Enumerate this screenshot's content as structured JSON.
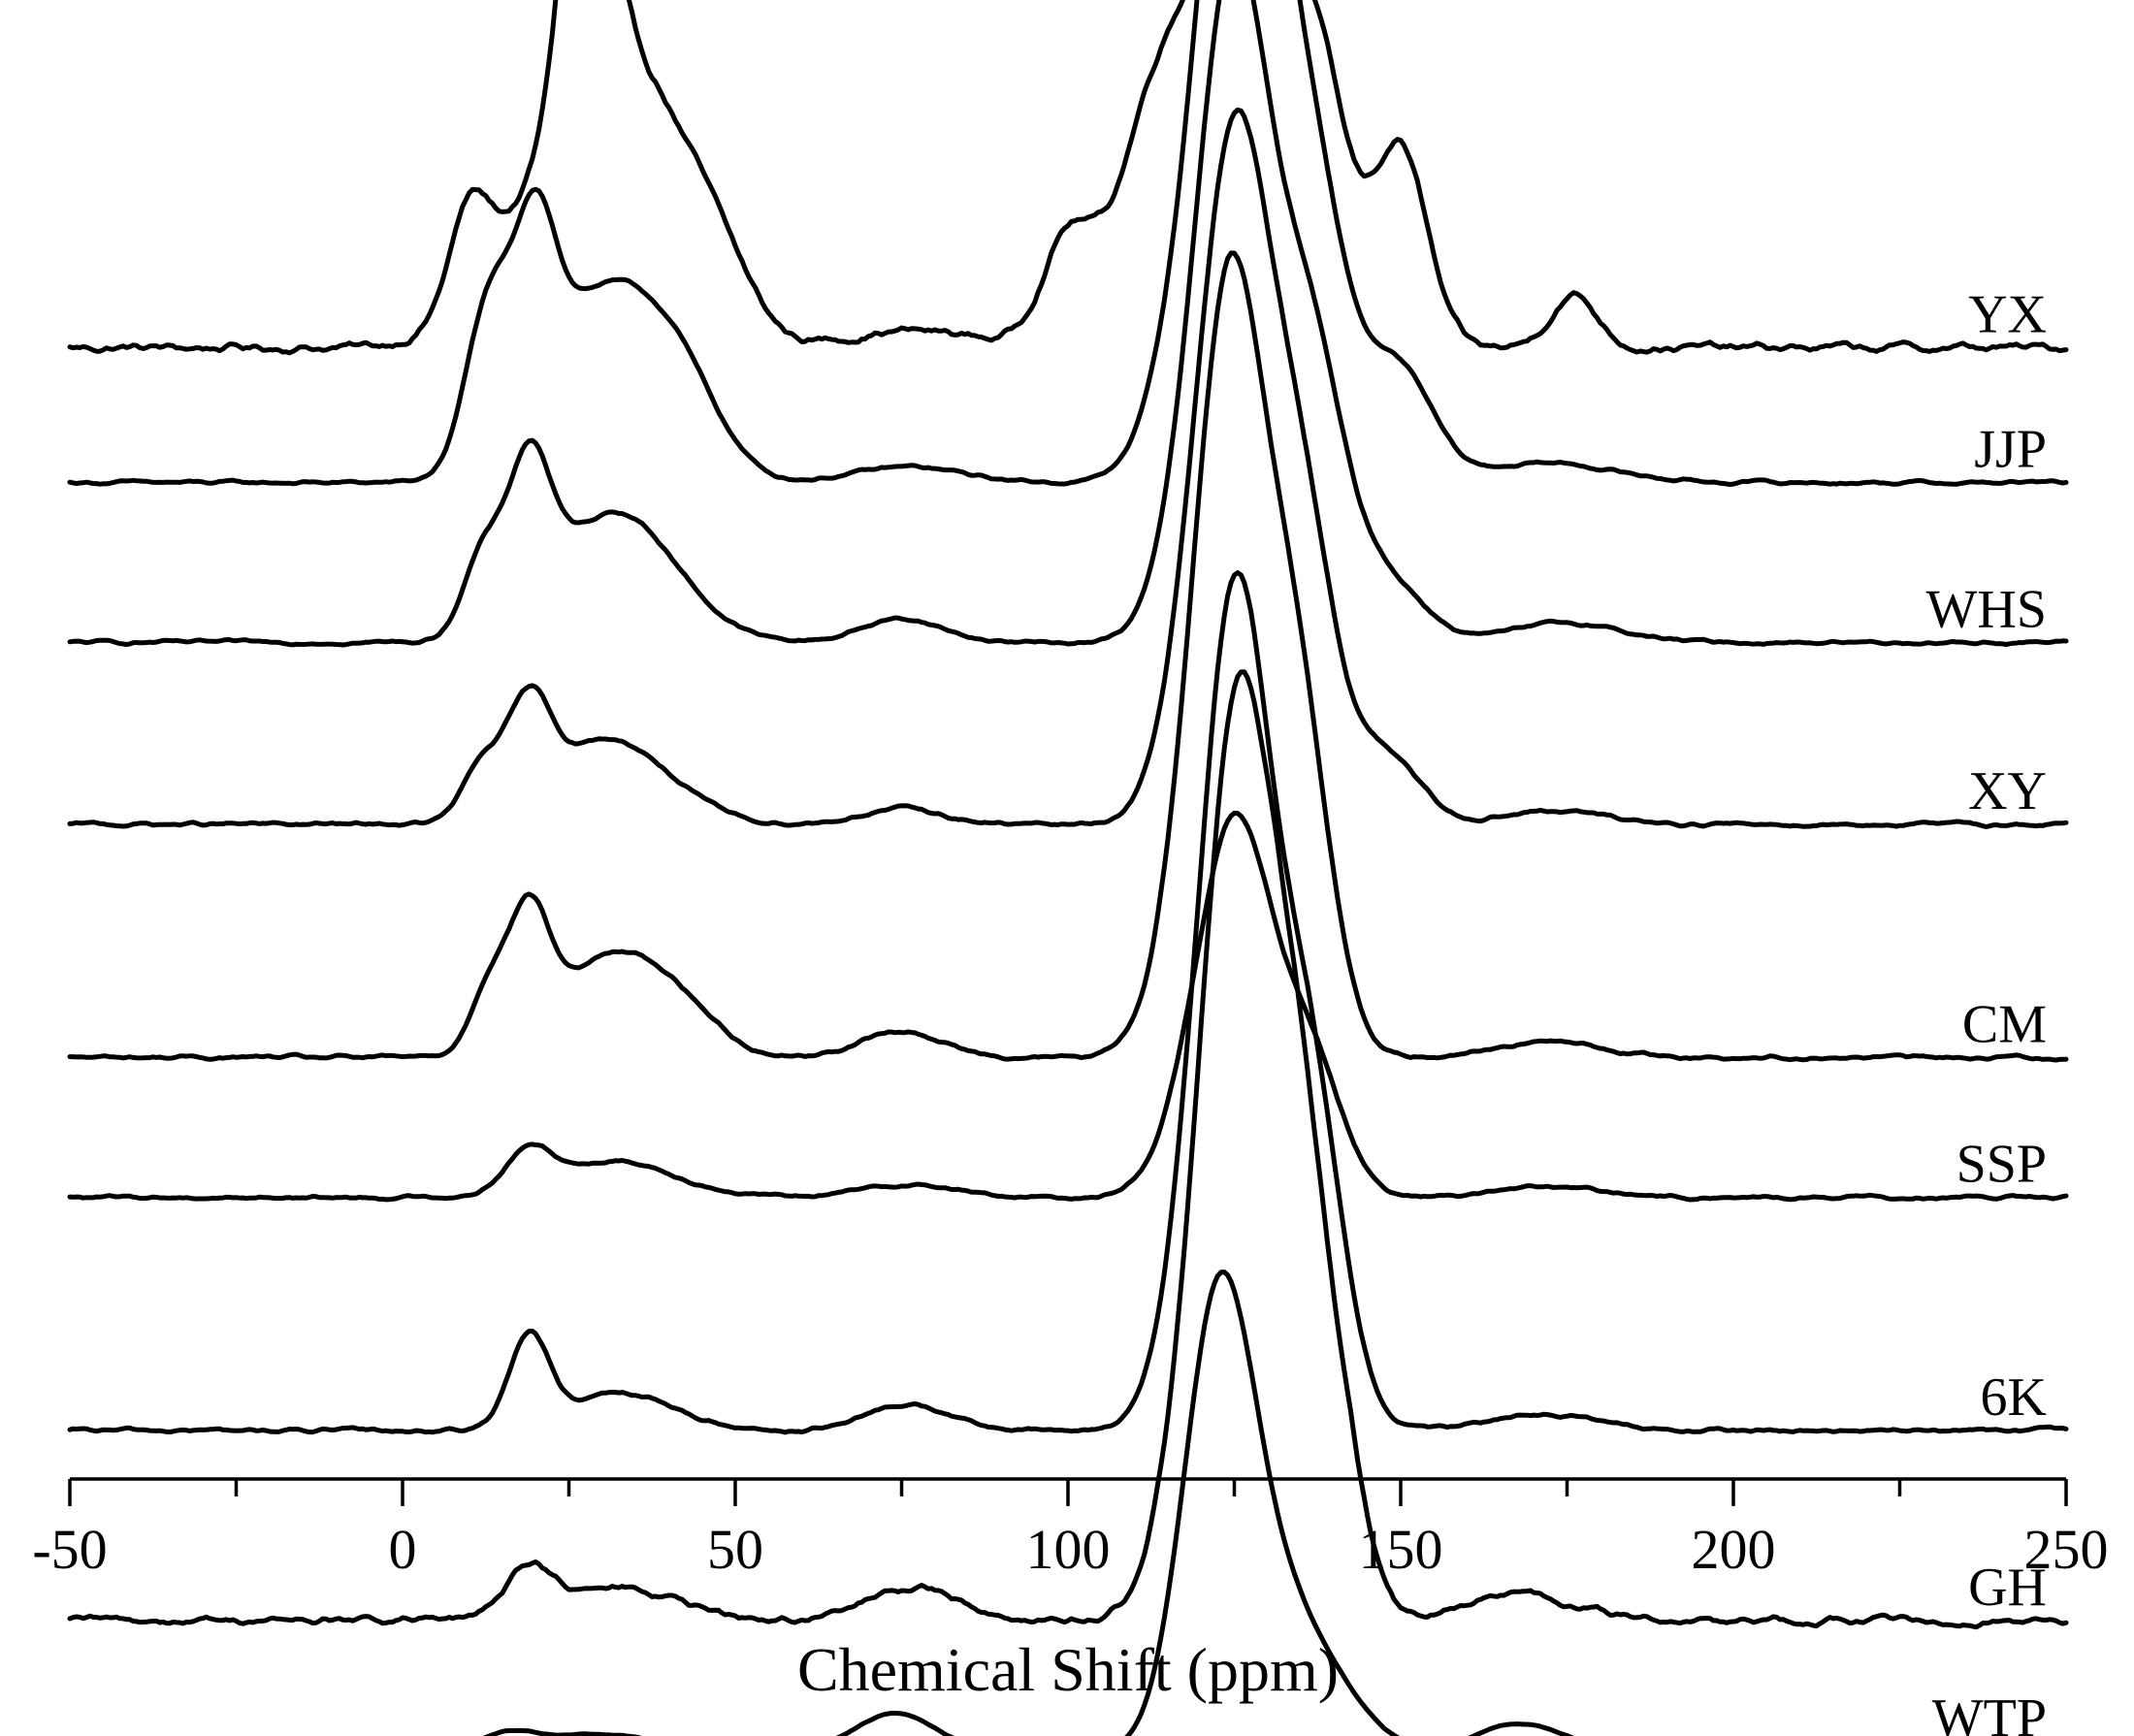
{
  "chart_data": {
    "type": "line",
    "title": "",
    "xlabel": "Chemical Shift (ppm)",
    "ylabel": "",
    "xlim": [
      -50,
      250
    ],
    "x_ticks": [
      -50,
      0,
      50,
      100,
      150,
      200,
      250
    ],
    "x_tick_labels": [
      "-50",
      "0",
      "50",
      "100",
      "150",
      "200",
      "250"
    ],
    "minor_tick_step": 25,
    "stacked_offsets": true,
    "series": [
      {
        "name": "YX",
        "label": "YX",
        "offset": 92.7,
        "noise": 0.9,
        "peaks": [
          [
            27.5,
            27.4,
            3.3
          ],
          [
            22,
            11,
            9
          ],
          [
            36,
            18,
            8
          ],
          [
            10,
            7,
            3
          ],
          [
            48,
            4,
            5
          ],
          [
            77,
            1.3,
            10
          ],
          [
            100,
            8,
            4
          ],
          [
            114,
            20,
            6
          ],
          [
            126,
            34,
            5.5
          ],
          [
            137,
            22,
            5
          ],
          [
            150,
            15,
            4
          ],
          [
            176,
            4,
            3.5
          ]
        ]
      },
      {
        "name": "JJP",
        "label": "JJP",
        "offset": 82.4,
        "noise": 0.35,
        "peaks": [
          [
            13,
            12,
            3.5
          ],
          [
            20,
            13,
            3
          ],
          [
            30,
            14.5,
            9
          ],
          [
            42,
            5,
            6
          ],
          [
            76,
            1.2,
            8
          ],
          [
            121,
            20,
            6
          ],
          [
            126,
            40,
            5
          ],
          [
            135,
            27,
            6
          ],
          [
            150,
            8,
            5
          ],
          [
            172,
            1.5,
            10
          ]
        ]
      },
      {
        "name": "WHS",
        "label": "WHS",
        "offset": 70.2,
        "noise": 0.35,
        "peaks": [
          [
            12,
            6,
            3
          ],
          [
            19,
            11.5,
            3.2
          ],
          [
            32,
            10,
            9
          ],
          [
            75,
            1.8,
            6
          ],
          [
            122,
            22,
            5.5
          ],
          [
            126,
            33,
            5
          ],
          [
            136,
            22,
            5
          ],
          [
            147,
            5,
            6
          ],
          [
            175,
            1.5,
            8
          ]
        ]
      },
      {
        "name": "XY",
        "label": "XY",
        "offset": 56.3,
        "noise": 0.4,
        "peaks": [
          [
            12,
            4,
            3
          ],
          [
            19,
            7.5,
            3.2
          ],
          [
            31,
            6.5,
            9
          ],
          [
            75,
            1.2,
            6
          ],
          [
            122,
            22,
            5.5
          ],
          [
            126,
            33,
            5
          ],
          [
            135,
            23,
            5
          ],
          [
            148,
            5,
            5
          ],
          [
            173,
            1,
            8
          ]
        ]
      },
      {
        "name": "CM",
        "label": "CM",
        "offset": 38.5,
        "noise": 0.4,
        "peaks": [
          [
            13,
            5,
            2.8
          ],
          [
            19,
            9.5,
            3
          ],
          [
            31,
            7.5,
            8
          ],
          [
            42,
            2.5,
            6
          ],
          [
            75,
            2,
            6
          ],
          [
            121,
            22,
            5.5
          ],
          [
            125,
            39,
            4.8
          ],
          [
            134,
            28,
            5
          ],
          [
            172,
            1.2,
            8
          ]
        ]
      },
      {
        "name": "SSP",
        "label": "SSP",
        "offset": 27.8,
        "noise": 0.35,
        "peaks": [
          [
            19,
            3,
            3.5
          ],
          [
            32,
            2.8,
            9
          ],
          [
            76,
            1,
            7
          ],
          [
            121,
            10,
            5.5
          ],
          [
            126,
            21,
            5
          ],
          [
            136,
            11,
            5
          ],
          [
            172,
            0.8,
            8
          ]
        ]
      },
      {
        "name": "6K",
        "label": "6K",
        "offset": 10.0,
        "noise": 0.4,
        "peaks": [
          [
            19,
            7,
            3
          ],
          [
            33,
            2.8,
            8
          ],
          [
            76,
            2,
            6
          ],
          [
            122,
            23,
            5.5
          ],
          [
            126,
            44,
            5
          ],
          [
            136,
            27,
            5
          ],
          [
            171,
            1.3,
            8
          ]
        ]
      },
      {
        "name": "GH",
        "label": "GH",
        "offset": -4.5,
        "noise": 0.8,
        "peaks": [
          [
            19,
            4,
            3.5
          ],
          [
            33,
            2.5,
            8
          ],
          [
            77,
            2.5,
            7
          ],
          [
            121,
            20,
            5.5
          ],
          [
            126,
            52,
            5
          ],
          [
            135,
            35,
            5
          ],
          [
            143,
            4,
            3
          ],
          [
            168,
            2,
            8
          ]
        ]
      },
      {
        "name": "WTP",
        "label": "WTP",
        "offset": -14.5,
        "noise": 0.12,
        "peaks": [
          [
            16,
            1.3,
            4.5
          ],
          [
            30,
            1.3,
            8
          ],
          [
            74,
            2.9,
            6
          ],
          [
            122.5,
            32,
            5.2
          ],
          [
            131,
            10,
            6.5
          ],
          [
            140,
            3,
            6
          ],
          [
            168,
            2.1,
            6.5
          ]
        ]
      }
    ]
  }
}
